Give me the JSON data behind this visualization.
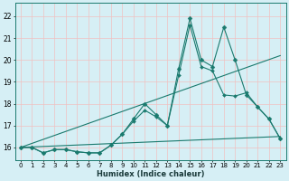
{
  "xlabel": "Humidex (Indice chaleur)",
  "background_color": "#d6eff5",
  "grid_color": "#f0c0c0",
  "line_color": "#1a7a6e",
  "xlim": [
    -0.5,
    23.5
  ],
  "ylim": [
    15.4,
    22.6
  ],
  "yticks": [
    16,
    17,
    18,
    19,
    20,
    21,
    22
  ],
  "xticks": [
    0,
    1,
    2,
    3,
    4,
    5,
    6,
    7,
    8,
    9,
    10,
    11,
    12,
    13,
    14,
    15,
    16,
    17,
    18,
    19,
    20,
    21,
    22,
    23
  ],
  "series": [
    {
      "x": [
        0,
        1,
        2,
        3,
        4,
        5,
        6,
        7,
        8,
        9,
        10,
        11,
        12,
        13,
        14,
        15,
        16,
        17,
        18,
        19,
        20,
        21,
        22,
        23
      ],
      "y": [
        16.0,
        16.0,
        15.75,
        15.9,
        15.9,
        15.8,
        15.75,
        15.75,
        16.1,
        16.6,
        17.3,
        18.0,
        17.5,
        17.0,
        19.6,
        21.9,
        20.0,
        19.7,
        21.5,
        20.0,
        18.4,
        17.85,
        17.3,
        16.4
      ],
      "marker": "D",
      "markersize": 2.5
    },
    {
      "x": [
        0,
        1,
        2,
        3,
        4,
        5,
        6,
        7,
        8,
        9,
        10,
        11,
        12,
        13,
        14,
        15,
        16,
        17,
        18,
        19,
        20,
        21,
        22,
        23
      ],
      "y": [
        16.0,
        16.0,
        15.75,
        15.9,
        15.9,
        15.8,
        15.75,
        15.75,
        16.1,
        16.6,
        17.2,
        17.7,
        17.4,
        17.0,
        19.3,
        21.6,
        19.7,
        19.5,
        18.4,
        18.35,
        18.5,
        17.85,
        17.3,
        16.4
      ],
      "marker": "D",
      "markersize": 2.0
    },
    {
      "x": [
        0,
        23
      ],
      "y": [
        16.0,
        20.2
      ],
      "marker": null,
      "markersize": 0
    },
    {
      "x": [
        0,
        23
      ],
      "y": [
        16.0,
        16.5
      ],
      "marker": null,
      "markersize": 0
    }
  ]
}
